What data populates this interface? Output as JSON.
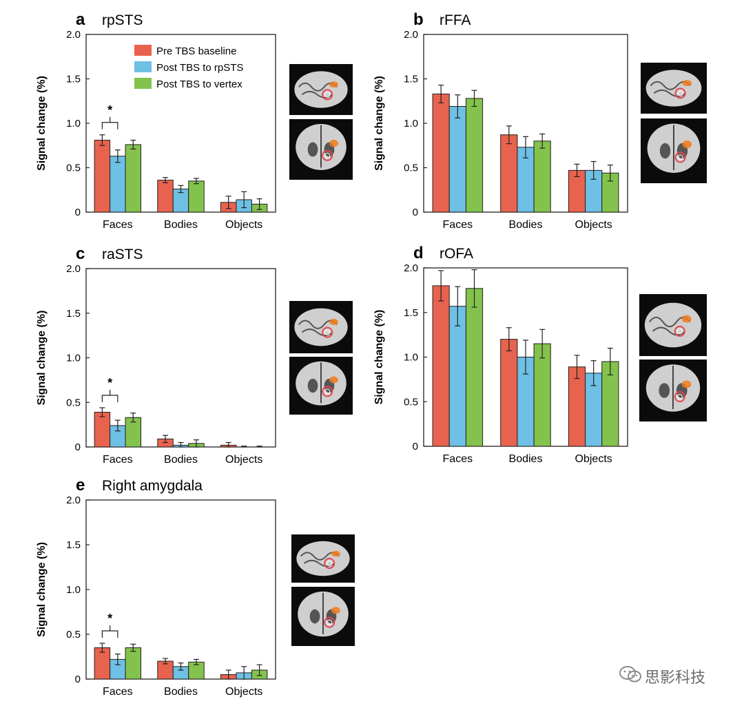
{
  "figure": {
    "legend": [
      {
        "label": "Pre TBS baseline",
        "color": "#e8634e"
      },
      {
        "label": "Post TBS to rpSTS",
        "color": "#6ec0e4"
      },
      {
        "label": "Post TBS to vertex",
        "color": "#83c34d"
      }
    ],
    "significance_marker": "*",
    "watermark": "思影科技"
  },
  "chart_data": [
    {
      "type": "bar",
      "panel_letter": "a",
      "title": "rpSTS",
      "ylabel": "Signal change (%)",
      "xlabel": "",
      "ylim": [
        0,
        2.0
      ],
      "yticks": [
        "0",
        "0.5",
        "1.0",
        "1.5",
        "2.0"
      ],
      "categories": [
        "Faces",
        "Bodies",
        "Objects"
      ],
      "series": [
        {
          "name": "Pre TBS baseline",
          "values": [
            0.81,
            0.36,
            0.11
          ],
          "errors": [
            0.06,
            0.03,
            0.07
          ]
        },
        {
          "name": "Post TBS to rpSTS",
          "values": [
            0.63,
            0.26,
            0.14
          ],
          "errors": [
            0.07,
            0.04,
            0.09
          ]
        },
        {
          "name": "Post TBS to vertex",
          "values": [
            0.76,
            0.35,
            0.09
          ],
          "errors": [
            0.05,
            0.03,
            0.06
          ]
        }
      ],
      "significance": "Faces",
      "show_legend": true
    },
    {
      "type": "bar",
      "panel_letter": "b",
      "title": "rFFA",
      "ylabel": "Signal change (%)",
      "xlabel": "",
      "ylim": [
        0,
        2.0
      ],
      "yticks": [
        "0",
        "0.5",
        "1.0",
        "1.5",
        "2.0"
      ],
      "categories": [
        "Faces",
        "Bodies",
        "Objects"
      ],
      "series": [
        {
          "name": "Pre TBS baseline",
          "values": [
            1.33,
            0.87,
            0.47
          ],
          "errors": [
            0.1,
            0.1,
            0.07
          ]
        },
        {
          "name": "Post TBS to rpSTS",
          "values": [
            1.19,
            0.73,
            0.47
          ],
          "errors": [
            0.13,
            0.12,
            0.1
          ]
        },
        {
          "name": "Post TBS to vertex",
          "values": [
            1.28,
            0.8,
            0.44
          ],
          "errors": [
            0.09,
            0.08,
            0.09
          ]
        }
      ],
      "significance": null,
      "show_legend": false
    },
    {
      "type": "bar",
      "panel_letter": "c",
      "title": "raSTS",
      "ylabel": "Signal change (%)",
      "xlabel": "",
      "ylim": [
        0,
        2.0
      ],
      "yticks": [
        "0",
        "0.5",
        "1.0",
        "1.5",
        "2.0"
      ],
      "categories": [
        "Faces",
        "Bodies",
        "Objects"
      ],
      "series": [
        {
          "name": "Pre TBS baseline",
          "values": [
            0.39,
            0.09,
            0.02
          ],
          "errors": [
            0.05,
            0.04,
            0.03
          ]
        },
        {
          "name": "Post TBS to rpSTS",
          "values": [
            0.24,
            0.02,
            0.0
          ],
          "errors": [
            0.06,
            0.03,
            0.01
          ]
        },
        {
          "name": "Post TBS to vertex",
          "values": [
            0.33,
            0.04,
            0.0
          ],
          "errors": [
            0.05,
            0.04,
            0.01
          ]
        }
      ],
      "significance": "Faces",
      "show_legend": false
    },
    {
      "type": "bar",
      "panel_letter": "d",
      "title": "rOFA",
      "ylabel": "Signal change (%)",
      "xlabel": "",
      "ylim": [
        0,
        2.0
      ],
      "yticks": [
        "0",
        "0.5",
        "1.0",
        "1.5",
        "2.0"
      ],
      "categories": [
        "Faces",
        "Bodies",
        "Objects"
      ],
      "series": [
        {
          "name": "Pre TBS baseline",
          "values": [
            1.8,
            1.2,
            0.89
          ],
          "errors": [
            0.17,
            0.13,
            0.13
          ]
        },
        {
          "name": "Post TBS to rpSTS",
          "values": [
            1.57,
            1.0,
            0.82
          ],
          "errors": [
            0.22,
            0.19,
            0.14
          ]
        },
        {
          "name": "Post TBS to vertex",
          "values": [
            1.77,
            1.15,
            0.95
          ],
          "errors": [
            0.21,
            0.16,
            0.15
          ]
        }
      ],
      "significance": null,
      "show_legend": false
    },
    {
      "type": "bar",
      "panel_letter": "e",
      "title": "Right amygdala",
      "ylabel": "Signal change (%)",
      "xlabel": "",
      "ylim": [
        0,
        2.0
      ],
      "yticks": [
        "0",
        "0.5",
        "1.0",
        "1.5",
        "2.0"
      ],
      "categories": [
        "Faces",
        "Bodies",
        "Objects"
      ],
      "series": [
        {
          "name": "Pre TBS baseline",
          "values": [
            0.35,
            0.2,
            0.05
          ],
          "errors": [
            0.05,
            0.03,
            0.05
          ]
        },
        {
          "name": "Post TBS to rpSTS",
          "values": [
            0.22,
            0.14,
            0.07
          ],
          "errors": [
            0.06,
            0.04,
            0.07
          ]
        },
        {
          "name": "Post TBS to vertex",
          "values": [
            0.35,
            0.19,
            0.1
          ],
          "errors": [
            0.04,
            0.03,
            0.06
          ]
        }
      ],
      "significance": "Faces",
      "show_legend": false
    }
  ]
}
